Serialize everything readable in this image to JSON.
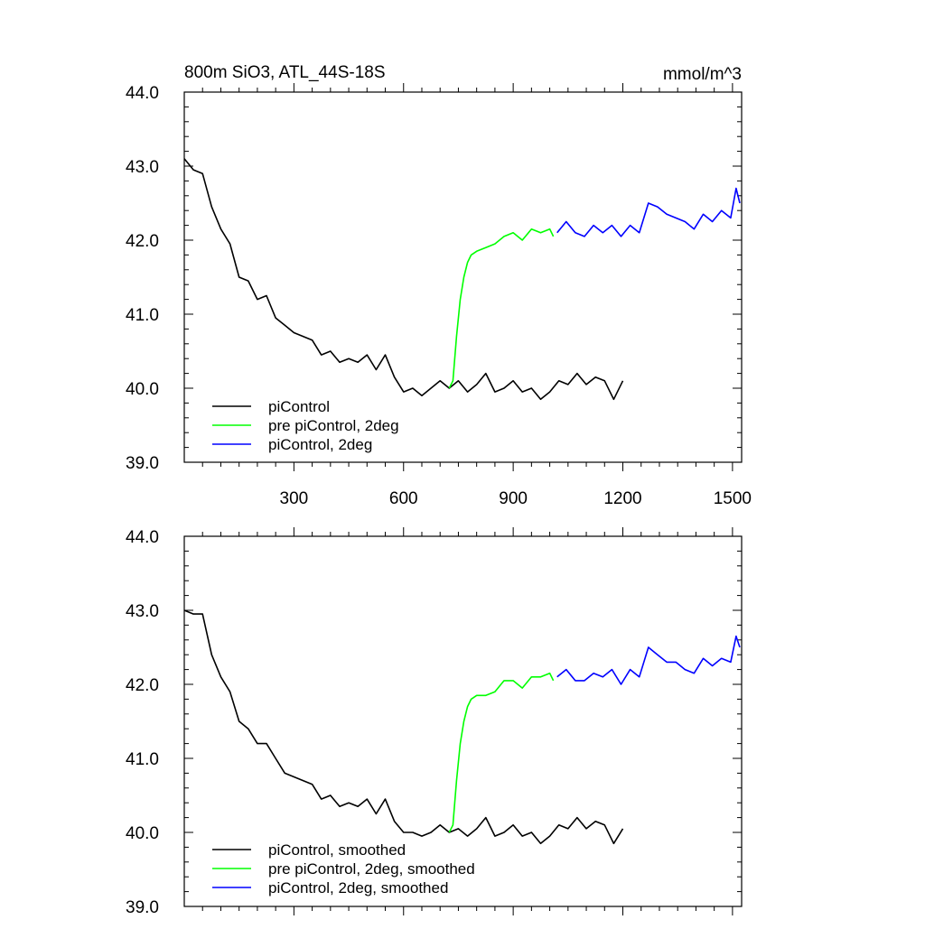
{
  "title_left": "800m SiO3, ATL_44S-18S",
  "title_right": "mmol/m^3",
  "colors": {
    "piControl": "#000000",
    "pre_2deg": "#00ff00",
    "piControl_2deg": "#0000ff"
  },
  "chart_data": [
    {
      "type": "line",
      "xlim": [
        0,
        1525
      ],
      "ylim": [
        39.0,
        44.0
      ],
      "x_ticks": [
        300,
        600,
        900,
        1200,
        1500
      ],
      "x_tick_labels": [
        "300",
        "600",
        "900",
        "1200",
        "1500"
      ],
      "y_ticks": [
        39.0,
        40.0,
        41.0,
        42.0,
        43.0,
        44.0
      ],
      "y_tick_labels": [
        "39.0",
        "40.0",
        "41.0",
        "42.0",
        "43.0",
        "44.0"
      ],
      "legend_position": "bottom-left",
      "series": [
        {
          "name": "piControl",
          "color": "#000000",
          "x": [
            0,
            25,
            50,
            75,
            100,
            125,
            150,
            175,
            200,
            225,
            250,
            275,
            300,
            325,
            350,
            375,
            400,
            425,
            450,
            475,
            500,
            525,
            550,
            575,
            600,
            625,
            650,
            675,
            700,
            725,
            750,
            775,
            800,
            825,
            850,
            875,
            900,
            925,
            950,
            975,
            1000,
            1025,
            1050,
            1075,
            1100,
            1125,
            1150,
            1175,
            1200
          ],
          "y": [
            43.1,
            42.95,
            42.9,
            42.45,
            42.15,
            41.95,
            41.5,
            41.45,
            41.2,
            41.25,
            40.95,
            40.85,
            40.75,
            40.7,
            40.65,
            40.45,
            40.5,
            40.35,
            40.4,
            40.35,
            40.45,
            40.25,
            40.45,
            40.15,
            39.95,
            40.0,
            39.9,
            40.0,
            40.1,
            40.0,
            40.1,
            39.95,
            40.05,
            40.2,
            39.95,
            40.0,
            40.1,
            39.95,
            40.0,
            39.85,
            39.95,
            40.1,
            40.05,
            40.2,
            40.05,
            40.15,
            40.1,
            39.85,
            40.1
          ]
        },
        {
          "name": "pre piControl, 2deg",
          "color": "#00ff00",
          "x": [
            725,
            735,
            745,
            755,
            765,
            775,
            785,
            800,
            825,
            850,
            875,
            900,
            925,
            950,
            975,
            1000,
            1010
          ],
          "y": [
            40.0,
            40.1,
            40.7,
            41.2,
            41.5,
            41.7,
            41.8,
            41.85,
            41.9,
            41.95,
            42.05,
            42.1,
            42.0,
            42.15,
            42.1,
            42.15,
            42.05
          ]
        },
        {
          "name": "piControl, 2deg",
          "color": "#0000ff",
          "x": [
            1020,
            1045,
            1070,
            1095,
            1120,
            1145,
            1170,
            1195,
            1220,
            1245,
            1270,
            1295,
            1320,
            1345,
            1370,
            1395,
            1420,
            1445,
            1470,
            1495,
            1510,
            1520
          ],
          "y": [
            42.1,
            42.25,
            42.1,
            42.05,
            42.2,
            42.1,
            42.2,
            42.05,
            42.2,
            42.1,
            42.5,
            42.45,
            42.35,
            42.3,
            42.25,
            42.15,
            42.35,
            42.25,
            42.4,
            42.3,
            42.7,
            42.5
          ]
        }
      ]
    },
    {
      "type": "line",
      "xlim": [
        0,
        1525
      ],
      "ylim": [
        39.0,
        44.0
      ],
      "x_ticks": [
        300,
        600,
        900,
        1200,
        1500
      ],
      "y_ticks": [
        39.0,
        40.0,
        41.0,
        42.0,
        43.0,
        44.0
      ],
      "y_tick_labels": [
        "39.0",
        "40.0",
        "41.0",
        "42.0",
        "43.0",
        "44.0"
      ],
      "legend_position": "bottom-left",
      "series": [
        {
          "name": "piControl, smoothed",
          "color": "#000000",
          "x": [
            0,
            25,
            50,
            75,
            100,
            125,
            150,
            175,
            200,
            225,
            250,
            275,
            300,
            325,
            350,
            375,
            400,
            425,
            450,
            475,
            500,
            525,
            550,
            575,
            600,
            625,
            650,
            675,
            700,
            725,
            750,
            775,
            800,
            825,
            850,
            875,
            900,
            925,
            950,
            975,
            1000,
            1025,
            1050,
            1075,
            1100,
            1125,
            1150,
            1175,
            1200
          ],
          "y": [
            43.0,
            42.95,
            42.95,
            42.4,
            42.1,
            41.9,
            41.5,
            41.4,
            41.2,
            41.2,
            41.0,
            40.8,
            40.75,
            40.7,
            40.65,
            40.45,
            40.5,
            40.35,
            40.4,
            40.35,
            40.45,
            40.25,
            40.45,
            40.15,
            40.0,
            40.0,
            39.95,
            40.0,
            40.1,
            40.0,
            40.05,
            39.95,
            40.05,
            40.2,
            39.95,
            40.0,
            40.1,
            39.95,
            40.0,
            39.85,
            39.95,
            40.1,
            40.05,
            40.2,
            40.05,
            40.15,
            40.1,
            39.85,
            40.05
          ]
        },
        {
          "name": "pre piControl, 2deg, smoothed",
          "color": "#00ff00",
          "x": [
            725,
            735,
            745,
            755,
            765,
            775,
            785,
            800,
            825,
            850,
            875,
            900,
            925,
            950,
            975,
            1000,
            1010
          ],
          "y": [
            40.0,
            40.1,
            40.7,
            41.2,
            41.5,
            41.7,
            41.8,
            41.85,
            41.85,
            41.9,
            42.05,
            42.05,
            41.95,
            42.1,
            42.1,
            42.15,
            42.05
          ]
        },
        {
          "name": "piControl, 2deg, smoothed",
          "color": "#0000ff",
          "x": [
            1020,
            1045,
            1070,
            1095,
            1120,
            1145,
            1170,
            1195,
            1220,
            1245,
            1270,
            1295,
            1320,
            1345,
            1370,
            1395,
            1420,
            1445,
            1470,
            1495,
            1510,
            1520
          ],
          "y": [
            42.1,
            42.2,
            42.05,
            42.05,
            42.15,
            42.1,
            42.2,
            42.0,
            42.2,
            42.1,
            42.5,
            42.4,
            42.3,
            42.3,
            42.2,
            42.15,
            42.35,
            42.25,
            42.35,
            42.3,
            42.65,
            42.5
          ]
        }
      ]
    }
  ]
}
